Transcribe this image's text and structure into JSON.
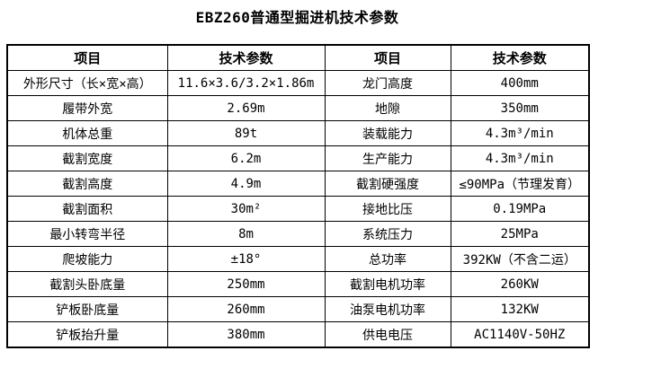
{
  "title": "EBZ260普通型掘进机技术参数",
  "table": {
    "headers": [
      "项目",
      "技术参数",
      "项目",
      "技术参数"
    ],
    "rows": [
      [
        "外形尺寸（长×宽×高）",
        "11.6×3.6/3.2×1.86m",
        "龙门高度",
        "400mm"
      ],
      [
        "履带外宽",
        "2.69m",
        "地隙",
        "350mm"
      ],
      [
        "机体总重",
        "89t",
        "装载能力",
        "4.3m³/min"
      ],
      [
        "截割宽度",
        "6.2m",
        "生产能力",
        "4.3m³/min"
      ],
      [
        "截割高度",
        "4.9m",
        "截割硬强度",
        "≤90MPa（节理发育）"
      ],
      [
        "截割面积",
        "30m²",
        "接地比压",
        "0.19MPa"
      ],
      [
        "最小转弯半径",
        "8m",
        "系统压力",
        "25MPa"
      ],
      [
        "爬坡能力",
        "±18°",
        "总功率",
        "392KW（不含二运）"
      ],
      [
        "截割头卧底量",
        "250mm",
        "截割电机功率",
        "260KW"
      ],
      [
        "铲板卧底量",
        "260mm",
        "油泵电机功率",
        "132KW"
      ],
      [
        "铲板抬升量",
        "380mm",
        "供电电压",
        "AC1140V-50HZ"
      ]
    ]
  },
  "colors": {
    "background": "#ffffff",
    "text": "#000000",
    "border": "#000000"
  }
}
